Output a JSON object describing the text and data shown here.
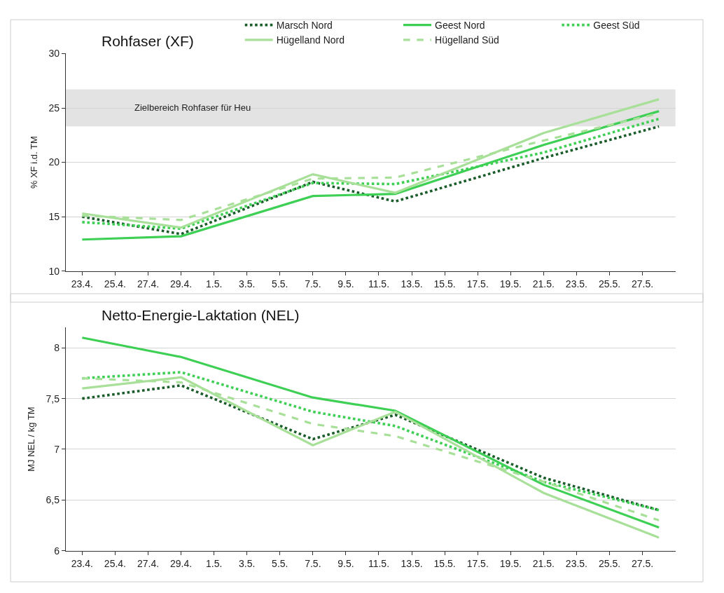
{
  "chart_data": [
    {
      "type": "line",
      "title": "Rohfaser (XF)",
      "ylabel": "% XF i.d. TM",
      "x": [
        "--04-23",
        "--04-29",
        "--05-07",
        "--05-12",
        "--05-21",
        "--05-28"
      ],
      "xlim": [
        "--04-22",
        "--05-29"
      ],
      "xticks": [
        {
          "value": "--04-23",
          "label": "23.4."
        },
        {
          "value": "--04-25",
          "label": "25.4."
        },
        {
          "value": "--04-27",
          "label": "27.4."
        },
        {
          "value": "--04-29",
          "label": "29.4."
        },
        {
          "value": "--05-01",
          "label": "1.5."
        },
        {
          "value": "--05-03",
          "label": "3.5."
        },
        {
          "value": "--05-05",
          "label": "5.5."
        },
        {
          "value": "--05-07",
          "label": "7.5."
        },
        {
          "value": "--05-09",
          "label": "9.5."
        },
        {
          "value": "--05-11",
          "label": "11.5."
        },
        {
          "value": "--05-13",
          "label": "13.5."
        },
        {
          "value": "--05-15",
          "label": "15.5."
        },
        {
          "value": "--05-17",
          "label": "17.5."
        },
        {
          "value": "--05-19",
          "label": "19.5."
        },
        {
          "value": "--05-21",
          "label": "21.5."
        },
        {
          "value": "--05-23",
          "label": "23.5."
        },
        {
          "value": "--05-25",
          "label": "25.5."
        },
        {
          "value": "--05-27",
          "label": "27.5."
        }
      ],
      "ylim": [
        10,
        30
      ],
      "yticks": [
        10,
        15,
        20,
        25,
        30
      ],
      "grid": "y",
      "legend": "top",
      "bands": [
        {
          "axis": "y",
          "from": 23.3,
          "to": 26.7,
          "label": "Zielbereich Rohfaser für Heu",
          "color": "#e3e3e3"
        }
      ],
      "series": [
        {
          "name": "Marsch Nord",
          "color": "#1a5c2a",
          "line_style": "dotted",
          "values": [
            15.0,
            13.4,
            18.2,
            16.4,
            20.4,
            23.3
          ]
        },
        {
          "name": "Geest Nord",
          "color": "#3ecf55",
          "line_style": "solid",
          "values": [
            12.9,
            13.2,
            16.9,
            17.1,
            21.6,
            24.7
          ]
        },
        {
          "name": "Geest Süd",
          "color": "#3ecf55",
          "line_style": "dotted",
          "values": [
            14.5,
            13.9,
            18.1,
            18.0,
            20.9,
            24.0
          ]
        },
        {
          "name": "Hügelland Nord",
          "color": "#a8e09a",
          "line_style": "solid",
          "values": [
            15.3,
            14.0,
            18.9,
            17.2,
            22.7,
            25.8
          ]
        },
        {
          "name": "Hügelland Süd",
          "color": "#a8e09a",
          "line_style": "dashed",
          "values": [
            15.1,
            14.7,
            18.5,
            18.6,
            22.0,
            24.5
          ]
        }
      ]
    },
    {
      "type": "line",
      "title": "Netto-Energie-Laktation (NEL)",
      "ylabel": "MJ NEL / kg TM",
      "x": [
        "--04-23",
        "--04-29",
        "--05-07",
        "--05-12",
        "--05-21",
        "--05-28"
      ],
      "xlim": [
        "--04-22",
        "--05-29"
      ],
      "xticks": [
        {
          "value": "--04-23",
          "label": "23.4."
        },
        {
          "value": "--04-25",
          "label": "25.4."
        },
        {
          "value": "--04-27",
          "label": "27.4."
        },
        {
          "value": "--04-29",
          "label": "29.4."
        },
        {
          "value": "--05-01",
          "label": "1.5."
        },
        {
          "value": "--05-03",
          "label": "3.5."
        },
        {
          "value": "--05-05",
          "label": "5.5."
        },
        {
          "value": "--05-07",
          "label": "7.5."
        },
        {
          "value": "--05-09",
          "label": "9.5."
        },
        {
          "value": "--05-11",
          "label": "11.5."
        },
        {
          "value": "--05-13",
          "label": "13.5."
        },
        {
          "value": "--05-15",
          "label": "15.5."
        },
        {
          "value": "--05-17",
          "label": "17.5."
        },
        {
          "value": "--05-19",
          "label": "19.5."
        },
        {
          "value": "--05-21",
          "label": "21.5."
        },
        {
          "value": "--05-23",
          "label": "23.5."
        },
        {
          "value": "--05-25",
          "label": "25.5."
        },
        {
          "value": "--05-27",
          "label": "27.5."
        }
      ],
      "ylim": [
        6,
        8.2
      ],
      "yticks": [
        6,
        {
          "value": 6.5,
          "label": "6,5"
        },
        7,
        {
          "value": 7.5,
          "label": "7,5"
        },
        8
      ],
      "grid": "y",
      "series": [
        {
          "color": "#1a5c2a",
          "line_style": "dotted",
          "values": [
            7.5,
            7.63,
            7.1,
            7.34,
            6.72,
            6.4
          ]
        },
        {
          "color": "#3ecf55",
          "line_style": "solid",
          "values": [
            8.1,
            7.91,
            7.51,
            7.38,
            6.65,
            6.23
          ]
        },
        {
          "color": "#3ecf55",
          "line_style": "dotted",
          "values": [
            7.7,
            7.76,
            7.37,
            7.23,
            6.68,
            6.4
          ]
        },
        {
          "color": "#a8e09a",
          "line_style": "solid",
          "values": [
            7.6,
            7.71,
            7.04,
            7.37,
            6.57,
            6.13
          ]
        },
        {
          "color": "#a8e09a",
          "line_style": "dashed",
          "values": [
            7.7,
            7.66,
            7.25,
            7.13,
            6.68,
            6.3
          ]
        }
      ]
    }
  ]
}
